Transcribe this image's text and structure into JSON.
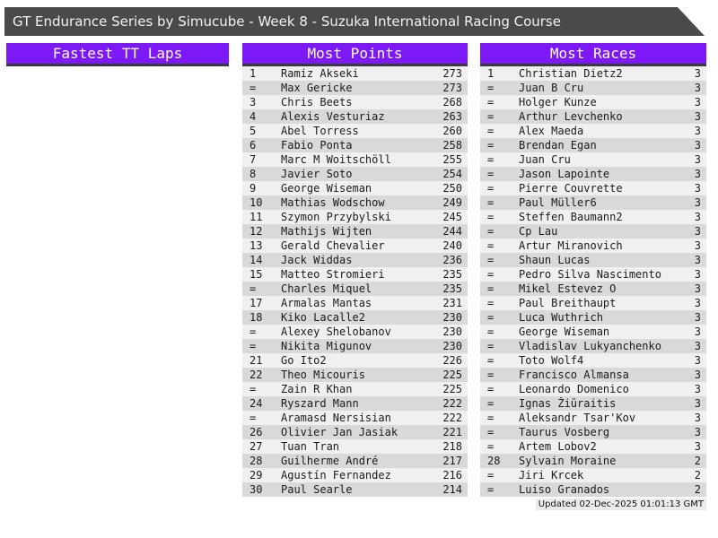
{
  "title": "GT Endurance Series by Simucube - Week 8 - Suzuka International Racing Course",
  "footer": {
    "updated": "Updated 02-Dec-2025 01:01:13 GMT"
  },
  "colors": {
    "accent_purple": "#7d18f6",
    "titlebar_gray": "#4a4a4a",
    "header_underline": "#3a3a3a",
    "row_light": "#f0f0f0",
    "row_dark": "#d9d9d9"
  },
  "columns": [
    {
      "header": "Fastest TT Laps",
      "rows": []
    },
    {
      "header": "Most Points",
      "rows": [
        [
          "1",
          "Ramiz Akseki",
          "273"
        ],
        [
          "=",
          "Max Gericke",
          "273"
        ],
        [
          "3",
          "Chris Beets",
          "268"
        ],
        [
          "4",
          "Alexis Vesturiaz",
          "263"
        ],
        [
          "5",
          "Abel Torress",
          "260"
        ],
        [
          "6",
          "Fabio Ponta",
          "258"
        ],
        [
          "7",
          "Marc M Woitschöll",
          "255"
        ],
        [
          "8",
          "Javier Soto",
          "254"
        ],
        [
          "9",
          "George Wiseman",
          "250"
        ],
        [
          "10",
          "Mathias Wodschow",
          "249"
        ],
        [
          "11",
          "Szymon Przybylski",
          "245"
        ],
        [
          "12",
          "Mathijs Wijten",
          "244"
        ],
        [
          "13",
          "Gerald Chevalier",
          "240"
        ],
        [
          "14",
          "Jack Widdas",
          "236"
        ],
        [
          "15",
          "Matteo Stromieri",
          "235"
        ],
        [
          "=",
          "Charles Miquel",
          "235"
        ],
        [
          "17",
          "Armalas Mantas",
          "231"
        ],
        [
          "18",
          "Kiko Lacalle2",
          "230"
        ],
        [
          "=",
          "Alexey Shelobanov",
          "230"
        ],
        [
          "=",
          "Nikita Migunov",
          "230"
        ],
        [
          "21",
          "Go Ito2",
          "226"
        ],
        [
          "22",
          "Theo Micouris",
          "225"
        ],
        [
          "=",
          "Zain R Khan",
          "225"
        ],
        [
          "24",
          "Ryszard Mann",
          "222"
        ],
        [
          "=",
          "Aramasd Nersisian",
          "222"
        ],
        [
          "26",
          "Olivier Jan Jasiak",
          "221"
        ],
        [
          "27",
          "Tuan Tran",
          "218"
        ],
        [
          "28",
          "Guilherme André",
          "217"
        ],
        [
          "29",
          "Agustín Fernandez",
          "216"
        ],
        [
          "30",
          "Paul Searle",
          "214"
        ]
      ]
    },
    {
      "header": "Most Races",
      "rows": [
        [
          "1",
          "Christian Dietz2",
          "3"
        ],
        [
          "=",
          "Juan B Cru",
          "3"
        ],
        [
          "=",
          "Holger Kunze",
          "3"
        ],
        [
          "=",
          "Arthur Levchenko",
          "3"
        ],
        [
          "=",
          "Alex Maeda",
          "3"
        ],
        [
          "=",
          "Brendan Egan",
          "3"
        ],
        [
          "=",
          "Juan Cru",
          "3"
        ],
        [
          "=",
          "Jason Lapointe",
          "3"
        ],
        [
          "=",
          "Pierre Couvrette",
          "3"
        ],
        [
          "=",
          "Paul Müller6",
          "3"
        ],
        [
          "=",
          "Steffen Baumann2",
          "3"
        ],
        [
          "=",
          "Cp Lau",
          "3"
        ],
        [
          "=",
          "Artur Miranovich",
          "3"
        ],
        [
          "=",
          "Shaun Lucas",
          "3"
        ],
        [
          "=",
          "Pedro Silva Nascimento",
          "3"
        ],
        [
          "=",
          "Mikel Estevez O",
          "3"
        ],
        [
          "=",
          "Paul Breithaupt",
          "3"
        ],
        [
          "=",
          "Luca Wuthrich",
          "3"
        ],
        [
          "=",
          "George Wiseman",
          "3"
        ],
        [
          "=",
          "Vladislav Lukyanchenko",
          "3"
        ],
        [
          "=",
          "Toto Wolf4",
          "3"
        ],
        [
          "=",
          "Francisco Almansa",
          "3"
        ],
        [
          "=",
          "Leonardo Domenico",
          "3"
        ],
        [
          "=",
          "Ignas Žiūraitis",
          "3"
        ],
        [
          "=",
          "Aleksandr Tsar'Kov",
          "3"
        ],
        [
          "=",
          "Taurus Vosberg",
          "3"
        ],
        [
          "=",
          "Artem Lobov2",
          "3"
        ],
        [
          "28",
          "Sylvain Moraine",
          "2"
        ],
        [
          "=",
          "Jiri Krcek",
          "2"
        ],
        [
          "=",
          "Luiso Granados",
          "2"
        ]
      ]
    }
  ]
}
